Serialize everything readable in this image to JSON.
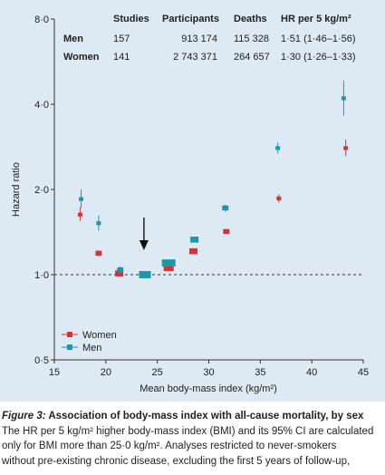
{
  "chart_data": {
    "type": "scatter",
    "xlabel": "Mean body-mass index (kg/m²)",
    "ylabel": "Hazard ratio",
    "xlim": [
      15,
      45
    ],
    "ylim": [
      0.5,
      8.0
    ],
    "y_scale": "log",
    "x_ticks": [
      "15",
      "20",
      "25",
      "30",
      "35",
      "40",
      "45"
    ],
    "y_ticks": [
      {
        "value": 0.5,
        "label": "0·5"
      },
      {
        "value": 1.0,
        "label": "1·0"
      },
      {
        "value": 2.0,
        "label": "2·0"
      },
      {
        "value": 4.0,
        "label": "4·0"
      },
      {
        "value": 8.0,
        "label": "8·0"
      }
    ],
    "reference_line": 1.0,
    "arrow_x": 23.7,
    "legend_position": "bottom-left",
    "series": [
      {
        "name": "Women",
        "color": "#d83236",
        "points": [
          {
            "x": 17.5,
            "y": 1.63,
            "lo": 1.55,
            "hi": 1.73,
            "w": 1
          },
          {
            "x": 19.3,
            "y": 1.19,
            "lo": 1.16,
            "hi": 1.22,
            "w": 2
          },
          {
            "x": 21.3,
            "y": 1.01,
            "lo": 1.0,
            "hi": 1.03,
            "w": 3
          },
          {
            "x": 23.8,
            "y": 1.0,
            "lo": 0.99,
            "hi": 1.01,
            "w": 5
          },
          {
            "x": 26.1,
            "y": 1.06,
            "lo": 1.04,
            "hi": 1.08,
            "w": 4
          },
          {
            "x": 28.5,
            "y": 1.21,
            "lo": 1.19,
            "hi": 1.23,
            "w": 3
          },
          {
            "x": 31.7,
            "y": 1.42,
            "lo": 1.39,
            "hi": 1.45,
            "w": 2
          },
          {
            "x": 36.8,
            "y": 1.86,
            "lo": 1.8,
            "hi": 1.92,
            "w": 1
          },
          {
            "x": 43.3,
            "y": 2.8,
            "lo": 2.62,
            "hi": 3.0,
            "w": 1
          }
        ]
      },
      {
        "name": "Men",
        "color": "#1a9aa8",
        "points": [
          {
            "x": 17.6,
            "y": 1.85,
            "lo": 1.72,
            "hi": 2.0,
            "w": 1
          },
          {
            "x": 19.3,
            "y": 1.52,
            "lo": 1.43,
            "hi": 1.62,
            "w": 1
          },
          {
            "x": 21.4,
            "y": 1.04,
            "lo": 1.01,
            "hi": 1.07,
            "w": 2
          },
          {
            "x": 23.8,
            "y": 1.0,
            "lo": 0.99,
            "hi": 1.01,
            "w": 5
          },
          {
            "x": 26.1,
            "y": 1.1,
            "lo": 1.09,
            "hi": 1.11,
            "w": 6
          },
          {
            "x": 28.6,
            "y": 1.33,
            "lo": 1.31,
            "hi": 1.35,
            "w": 3
          },
          {
            "x": 31.6,
            "y": 1.72,
            "lo": 1.67,
            "hi": 1.77,
            "w": 2
          },
          {
            "x": 36.7,
            "y": 2.8,
            "lo": 2.68,
            "hi": 2.93,
            "w": 1
          },
          {
            "x": 43.1,
            "y": 4.2,
            "lo": 3.65,
            "hi": 4.85,
            "w": 1
          }
        ]
      }
    ]
  },
  "summary_table": {
    "headers": [
      "Studies",
      "Participants",
      "Deaths",
      "HR per 5 kg/m²"
    ],
    "rows": [
      {
        "label": "Men",
        "studies": "157",
        "participants": "913 174",
        "deaths": "115 328",
        "hr": "1·51 (1·46–1·56)"
      },
      {
        "label": "Women",
        "studies": "141",
        "participants": "2 743 371",
        "deaths": "264 657",
        "hr": "1·30 (1·26–1·33)"
      }
    ]
  },
  "caption": {
    "figure_label": "Figure 3:",
    "title": " Association of body-mass index with all-cause mortality, by sex",
    "line1": "The HR per 5 kg/m² higher body-mass index (BMI) and its 95% CI are calculated",
    "line2": "only for BMI more than 25·0 kg/m². Analyses restricted to never-smokers",
    "line3": "without pre-existing chronic disease, excluding the first 5 years of follow-up,"
  }
}
